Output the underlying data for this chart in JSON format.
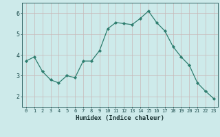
{
  "x": [
    0,
    1,
    2,
    3,
    4,
    5,
    6,
    7,
    8,
    9,
    10,
    11,
    12,
    13,
    14,
    15,
    16,
    17,
    18,
    19,
    20,
    21,
    22,
    23
  ],
  "y": [
    3.7,
    3.9,
    3.2,
    2.8,
    2.65,
    3.0,
    2.9,
    3.7,
    3.7,
    4.2,
    5.25,
    5.55,
    5.5,
    5.45,
    5.75,
    6.1,
    5.55,
    5.15,
    4.4,
    3.9,
    3.5,
    2.65,
    2.25,
    1.9
  ],
  "line_color": "#2d7d6e",
  "marker_color": "#2d7d6e",
  "bg_color": "#cdeaea",
  "grid_color": "#c8b8b8",
  "xlabel": "Humidex (Indice chaleur)",
  "ylabel": "",
  "ylim": [
    1.5,
    6.5
  ],
  "xlim": [
    -0.5,
    23.5
  ],
  "yticks": [
    2,
    3,
    4,
    5,
    6
  ],
  "xticks": [
    0,
    1,
    2,
    3,
    4,
    5,
    6,
    7,
    8,
    9,
    10,
    11,
    12,
    13,
    14,
    15,
    16,
    17,
    18,
    19,
    20,
    21,
    22,
    23
  ],
  "tick_color": "#1a4a4a",
  "label_color": "#1a3333",
  "axis_color": "#2d5f5f",
  "xlabel_fontsize": 6.5,
  "ytick_fontsize": 6.0,
  "xtick_fontsize": 5.0
}
